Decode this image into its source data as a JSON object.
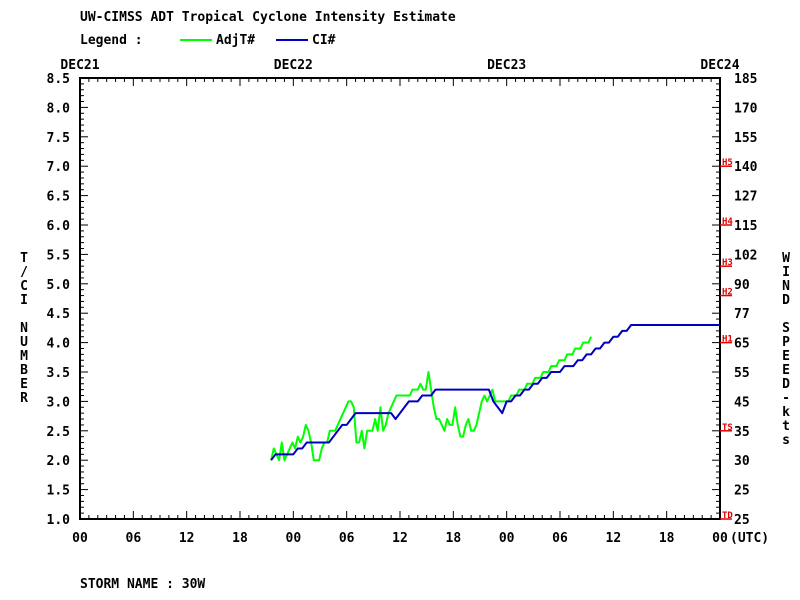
{
  "chart_data": {
    "type": "line",
    "title": "UW-CIMSS ADT Tropical Cyclone Intensity Estimate",
    "legend_title": "Legend :",
    "legend_placement": "top-left",
    "ylabel_left": "T/CI NUMBER",
    "ylabel_right": "WIND SPEED-kts",
    "xlabel": "(UTC)",
    "footer": "STORM NAME : 30W",
    "date_labels": [
      "DEC21",
      "DEC22",
      "DEC23",
      "DEC24"
    ],
    "x_tick_labels": [
      "00",
      "06",
      "12",
      "18",
      "00",
      "06",
      "12",
      "18",
      "00",
      "06",
      "12",
      "18",
      "00"
    ],
    "y_tick_labels": [
      "1.0",
      "1.5",
      "2.0",
      "2.5",
      "3.0",
      "3.5",
      "4.0",
      "4.5",
      "5.0",
      "5.5",
      "6.0",
      "6.5",
      "7.0",
      "7.5",
      "8.0",
      "8.5"
    ],
    "wind_tick_labels": [
      "25",
      "25",
      "30",
      "35",
      "45",
      "55",
      "65",
      "77",
      "90",
      "102",
      "115",
      "127",
      "140",
      "155",
      "170",
      "185"
    ],
    "category_markers": [
      {
        "label": "TD",
        "t": 1.0
      },
      {
        "label": "TS",
        "t": 2.5
      },
      {
        "label": "H1",
        "t": 4.0
      },
      {
        "label": "H2",
        "t": 4.8
      },
      {
        "label": "H3",
        "t": 5.3
      },
      {
        "label": "H4",
        "t": 6.0
      },
      {
        "label": "H5",
        "t": 7.0
      }
    ],
    "xlim_hours": [
      0,
      72
    ],
    "ylim": [
      1.0,
      8.5
    ],
    "grid": false,
    "series": [
      {
        "name": "AdjT#",
        "color": "#00ff00",
        "x": [
          21.5,
          21.8,
          22.1,
          22.4,
          22.7,
          23.0,
          23.3,
          23.6,
          23.9,
          24.2,
          24.5,
          24.8,
          25.1,
          25.4,
          25.7,
          26.0,
          26.3,
          26.6,
          26.9,
          27.2,
          27.5,
          27.8,
          28.1,
          28.4,
          28.7,
          29.0,
          29.3,
          29.6,
          29.9,
          30.2,
          30.5,
          30.8,
          31.1,
          31.4,
          31.7,
          32.0,
          32.3,
          32.6,
          32.9,
          33.2,
          33.5,
          33.8,
          34.1,
          34.4,
          34.7,
          35.0,
          35.3,
          35.6,
          35.9,
          36.2,
          36.5,
          36.8,
          37.1,
          37.4,
          37.7,
          38.0,
          38.3,
          38.6,
          38.9,
          39.2,
          39.5,
          39.8,
          40.1,
          40.4,
          40.7,
          41.0,
          41.3,
          41.6,
          41.9,
          42.2,
          42.5,
          42.8,
          43.1,
          43.4,
          43.7,
          44.0,
          44.3,
          44.6,
          44.9,
          45.2,
          45.5,
          45.8,
          46.1,
          46.4,
          46.7,
          47.0,
          47.3,
          47.6,
          47.9,
          48.2,
          48.5,
          48.8,
          49.1,
          49.4,
          49.7,
          50.0,
          50.3,
          50.6,
          50.9,
          51.2,
          51.5,
          51.8,
          52.1,
          52.4,
          52.7,
          53.0,
          53.3,
          53.6,
          53.9,
          54.2,
          54.5,
          54.8,
          55.1,
          55.4,
          55.7,
          56.0,
          56.3,
          56.6,
          56.9,
          57.2,
          57.5
        ],
        "y": [
          2.0,
          2.2,
          2.1,
          2.0,
          2.3,
          2.0,
          2.1,
          2.2,
          2.3,
          2.2,
          2.4,
          2.3,
          2.4,
          2.6,
          2.5,
          2.3,
          2.0,
          2.0,
          2.0,
          2.2,
          2.3,
          2.3,
          2.5,
          2.5,
          2.5,
          2.6,
          2.7,
          2.8,
          2.9,
          3.0,
          3.0,
          2.9,
          2.3,
          2.3,
          2.5,
          2.2,
          2.5,
          2.5,
          2.5,
          2.7,
          2.5,
          2.9,
          2.5,
          2.6,
          2.8,
          2.9,
          3.0,
          3.1,
          3.1,
          3.1,
          3.1,
          3.1,
          3.1,
          3.2,
          3.2,
          3.2,
          3.3,
          3.2,
          3.2,
          3.5,
          3.2,
          2.9,
          2.7,
          2.7,
          2.6,
          2.5,
          2.7,
          2.6,
          2.6,
          2.9,
          2.6,
          2.4,
          2.4,
          2.6,
          2.7,
          2.5,
          2.5,
          2.6,
          2.8,
          3.0,
          3.1,
          3.0,
          3.1,
          3.2,
          3.0,
          3.0,
          3.0,
          3.0,
          3.0,
          3.0,
          3.1,
          3.1,
          3.1,
          3.2,
          3.2,
          3.2,
          3.3,
          3.3,
          3.3,
          3.4,
          3.4,
          3.4,
          3.5,
          3.5,
          3.5,
          3.6,
          3.6,
          3.6,
          3.7,
          3.7,
          3.7,
          3.8,
          3.8,
          3.8,
          3.9,
          3.9,
          3.9,
          4.0,
          4.0,
          4.0,
          4.1
        ]
      },
      {
        "name": "CI#",
        "color": "#0000c0",
        "x": [
          21.5,
          22.0,
          24.0,
          24.5,
          25.0,
          25.5,
          26.0,
          26.5,
          27.0,
          27.5,
          28.0,
          28.5,
          29.0,
          29.5,
          30.0,
          30.5,
          31.0,
          31.5,
          32.0,
          33.0,
          34.0,
          35.0,
          35.5,
          36.0,
          36.5,
          37.0,
          37.5,
          38.0,
          38.5,
          39.0,
          39.5,
          40.0,
          41.0,
          42.0,
          43.0,
          44.0,
          45.0,
          46.0,
          46.5,
          47.0,
          47.5,
          48.0,
          48.5,
          49.0,
          49.5,
          50.0,
          50.5,
          51.0,
          51.5,
          52.0,
          52.5,
          53.0,
          53.5,
          54.0,
          54.5,
          55.0,
          55.5,
          56.0,
          56.5,
          57.0,
          57.5,
          58.0,
          58.5,
          59.0,
          59.5,
          60.0,
          60.5,
          61.0,
          61.5,
          62.0,
          62.5,
          63.0,
          63.5,
          64.0,
          64.5,
          65.0,
          65.5,
          66.0,
          66.5,
          67.0,
          67.5,
          68.0,
          68.5,
          69.0,
          69.5,
          70.0,
          70.5,
          71.0,
          71.5,
          72.0
        ],
        "y": [
          2.0,
          2.1,
          2.1,
          2.2,
          2.2,
          2.3,
          2.3,
          2.3,
          2.3,
          2.3,
          2.3,
          2.4,
          2.5,
          2.6,
          2.6,
          2.7,
          2.8,
          2.8,
          2.8,
          2.8,
          2.8,
          2.8,
          2.7,
          2.8,
          2.9,
          3.0,
          3.0,
          3.0,
          3.1,
          3.1,
          3.1,
          3.2,
          3.2,
          3.2,
          3.2,
          3.2,
          3.2,
          3.2,
          3.0,
          2.9,
          2.8,
          3.0,
          3.0,
          3.1,
          3.1,
          3.2,
          3.2,
          3.3,
          3.3,
          3.4,
          3.4,
          3.5,
          3.5,
          3.5,
          3.6,
          3.6,
          3.6,
          3.7,
          3.7,
          3.8,
          3.8,
          3.9,
          3.9,
          4.0,
          4.0,
          4.1,
          4.1,
          4.2,
          4.2,
          4.3,
          4.3,
          4.3,
          4.3,
          4.3,
          4.3,
          4.3,
          4.3,
          4.3,
          4.3,
          4.3,
          4.3,
          4.3,
          4.3,
          4.3,
          4.3,
          4.3,
          4.3,
          4.3,
          4.3,
          4.3
        ]
      }
    ]
  }
}
